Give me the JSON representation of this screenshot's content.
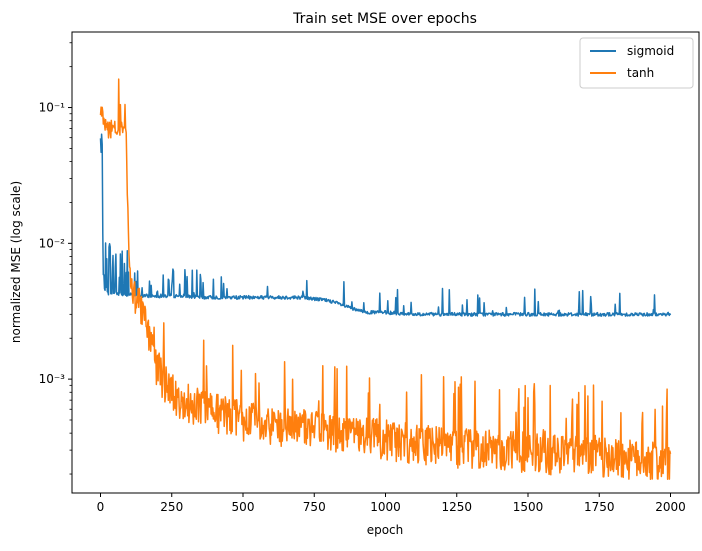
{
  "chart_data": {
    "type": "line",
    "title": "Train set MSE over epochs",
    "xlabel": "epoch",
    "ylabel": "normalized MSE (log scale)",
    "xlim": [
      -100,
      2100
    ],
    "ylim": [
      0.000145,
      0.36
    ],
    "yscale": "log",
    "xticks": [
      0,
      250,
      500,
      750,
      1000,
      1250,
      1500,
      1750,
      2000
    ],
    "xtick_labels": [
      "0",
      "250",
      "500",
      "750",
      "1000",
      "1250",
      "1500",
      "1750",
      "2000"
    ],
    "yticks_major": [
      0.001,
      0.01,
      0.1
    ],
    "ytick_labels": [
      "10⁻³",
      "10⁻²",
      "10⁻¹"
    ],
    "grid": false,
    "legend_position": "top-right",
    "series": [
      {
        "name": "sigmoid",
        "color": "#1f77b4",
        "x": [
          0,
          5,
          10,
          15,
          20,
          30,
          40,
          50,
          60,
          70,
          80,
          90,
          100,
          125,
          150,
          200,
          250,
          300,
          350,
          400,
          450,
          500,
          550,
          600,
          650,
          700,
          750,
          800,
          850,
          900,
          950,
          1000,
          1100,
          1200,
          1300,
          1400,
          1500,
          1600,
          1700,
          1800,
          1900,
          2000
        ],
        "y": [
          0.06,
          0.03,
          0.006,
          0.0045,
          0.0043,
          0.0043,
          0.0043,
          0.0043,
          0.0043,
          0.0042,
          0.0042,
          0.0042,
          0.0042,
          0.0041,
          0.0041,
          0.0041,
          0.0041,
          0.0041,
          0.004,
          0.004,
          0.004,
          0.004,
          0.004,
          0.004,
          0.004,
          0.004,
          0.0039,
          0.0038,
          0.0035,
          0.0032,
          0.0031,
          0.0031,
          0.003,
          0.003,
          0.003,
          0.003,
          0.003,
          0.003,
          0.003,
          0.003,
          0.003,
          0.003
        ]
      },
      {
        "name": "tanh",
        "color": "#ff7f0e",
        "x": [
          0,
          10,
          20,
          30,
          40,
          50,
          60,
          70,
          80,
          90,
          95,
          100,
          110,
          125,
          150,
          175,
          200,
          225,
          250,
          300,
          350,
          400,
          450,
          500,
          600,
          700,
          800,
          900,
          1000,
          1100,
          1200,
          1300,
          1400,
          1500,
          1600,
          1700,
          1800,
          1900,
          2000
        ],
        "y": [
          0.09,
          0.08,
          0.07,
          0.07,
          0.07,
          0.07,
          0.068,
          0.068,
          0.068,
          0.07,
          0.02,
          0.008,
          0.005,
          0.004,
          0.0028,
          0.0018,
          0.0012,
          0.0009,
          0.0008,
          0.00068,
          0.00062,
          0.00057,
          0.00053,
          0.0005,
          0.00046,
          0.00043,
          0.0004,
          0.00038,
          0.00036,
          0.00034,
          0.00032,
          0.00031,
          0.0003,
          0.00029,
          0.00028,
          0.00027,
          0.00026,
          0.00025,
          0.00024
        ]
      }
    ]
  }
}
